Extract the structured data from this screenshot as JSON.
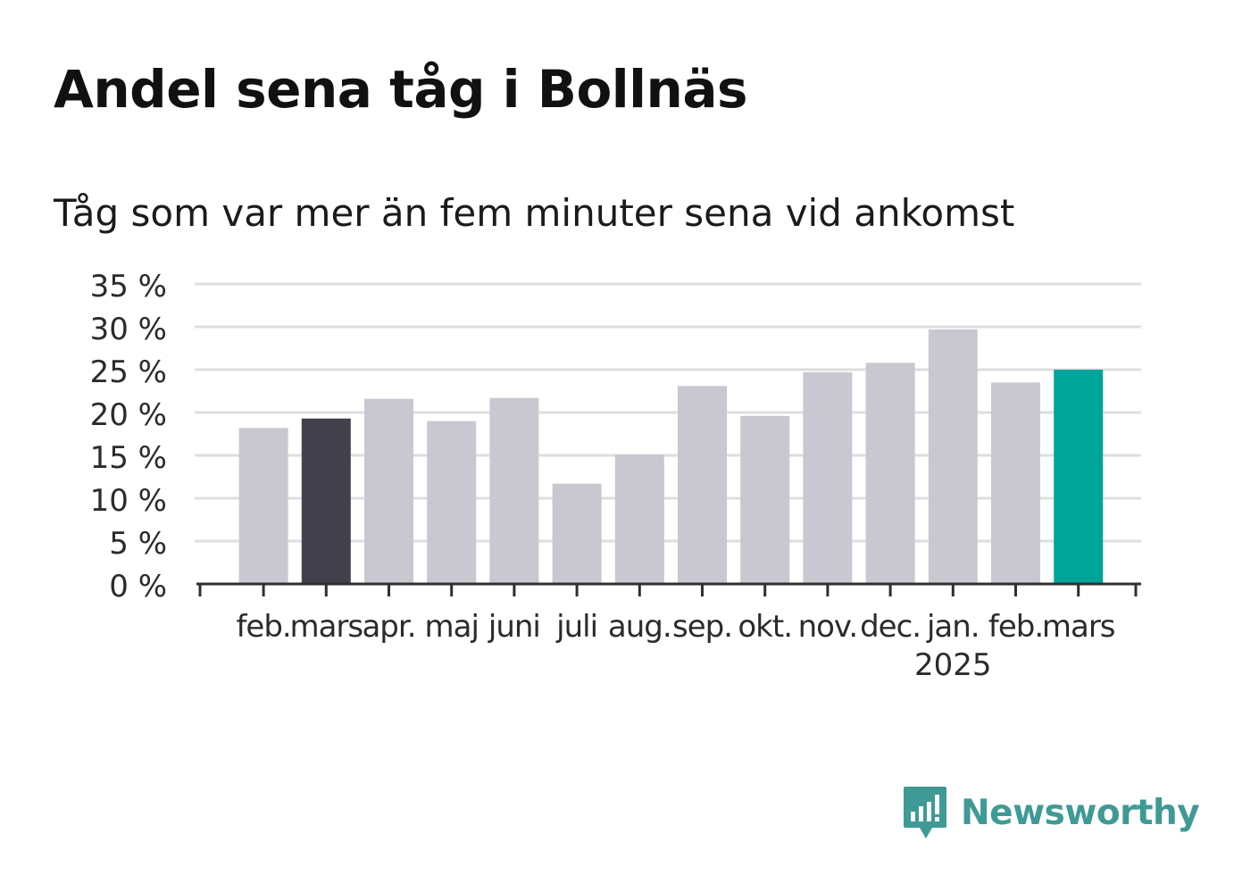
{
  "chart_data": {
    "type": "bar",
    "title": "Andel sena tåg i Bollnäs",
    "subtitle": "Tåg som var mer än fem minuter sena vid ankomst",
    "categories": [
      "feb.",
      "mars",
      "apr.",
      "maj",
      "juni",
      "juli",
      "aug.",
      "sep.",
      "okt.",
      "nov.",
      "dec.",
      "jan.",
      "feb.",
      "mars"
    ],
    "year_label": "2025",
    "year_label_under": "jan.",
    "series": [
      {
        "values": [
          18.2,
          19.3,
          21.6,
          19.0,
          21.7,
          11.7,
          15.1,
          23.1,
          19.6,
          24.7,
          25.8,
          29.7,
          23.5,
          25.0
        ]
      }
    ],
    "bar_colors": [
      "#c9c8d1",
      "#43414c",
      "#c9c8d1",
      "#c9c8d1",
      "#c9c8d1",
      "#c9c8d1",
      "#c9c8d1",
      "#c9c8d1",
      "#c9c8d1",
      "#c9c8d1",
      "#c9c8d1",
      "#c9c8d1",
      "#c9c8d1",
      "#00a499"
    ],
    "yticks": [
      0,
      5,
      10,
      15,
      20,
      25,
      30,
      35
    ],
    "ytick_labels": [
      "0 %",
      "5 %",
      "10 %",
      "15 %",
      "20 %",
      "25 %",
      "30 %",
      "35 %"
    ],
    "ylim": [
      0,
      35
    ],
    "grid": true,
    "xlabel": "",
    "ylabel": ""
  },
  "brand": {
    "name": "Newsworthy",
    "color": "#3f9a95",
    "icon": "newsworthy-logo-icon"
  }
}
